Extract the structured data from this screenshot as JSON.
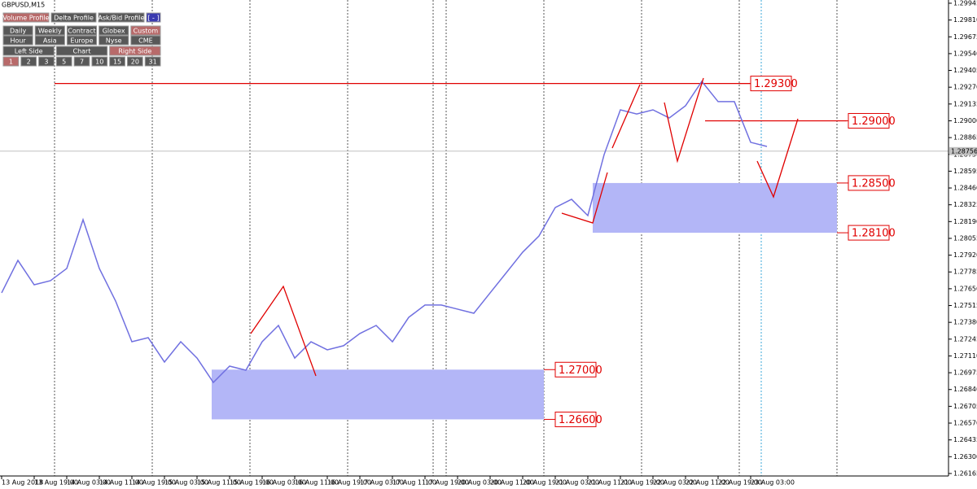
{
  "window_title": "GBPUSD,M15",
  "toolbar": {
    "rows": [
      [
        "Volume Profile",
        "Delta Profile",
        "Ask/Bid Profile",
        "[ - ]"
      ],
      [
        "Daily",
        "Weekly",
        "Contract",
        "Globex",
        "Custom"
      ],
      [
        "Hour",
        "Asia",
        "Europe",
        "Nyse",
        "CME"
      ],
      [
        "Left Side",
        "Chart",
        "Right Side"
      ],
      [
        "1",
        "2",
        "3",
        "5",
        "7",
        "10",
        "15",
        "20",
        "31"
      ]
    ]
  },
  "chart_data": {
    "type": "line",
    "categories": [
      "13 Aug 2018",
      null,
      "13 Aug 19:00",
      null,
      "14 Aug 03:00",
      null,
      "14 Aug 11:00",
      null,
      "14 Aug 19:00",
      null,
      "15 Aug 03:00",
      null,
      "15 Aug 11:00",
      null,
      "15 Aug 19:00",
      null,
      "16 Aug 03:00",
      null,
      "16 Aug 11:00",
      null,
      "16 Aug 19:00",
      null,
      "17 Aug 03:00",
      null,
      "17 Aug 11:00",
      null,
      "17 Aug 19:00",
      null,
      "20 Aug 03:00",
      null,
      "20 Aug 11:00",
      null,
      "20 Aug 19:00",
      null,
      "21 Aug 03:00",
      null,
      "21 Aug 11:00",
      null,
      "21 Aug 19:00",
      null,
      "22 Aug 03:00",
      null,
      "22 Aug 11:00",
      null,
      "22 Aug 19:00",
      null,
      "23 Aug 03:00",
      null
    ],
    "series": [
      {
        "name": "GBPUSD",
        "color": "#7070e0",
        "values": [
          1.27617,
          1.27878,
          1.27682,
          1.27715,
          1.27813,
          1.28205,
          1.27813,
          1.27551,
          1.27224,
          1.27257,
          1.27061,
          1.27224,
          1.27093,
          1.26897,
          1.27028,
          1.26995,
          1.27224,
          1.27355,
          1.27093,
          1.27224,
          1.27159,
          1.27192,
          1.2729,
          1.27355,
          1.27224,
          1.2742,
          1.27519,
          1.27519,
          1.27486,
          1.27453,
          1.27617,
          1.2778,
          1.27944,
          1.28074,
          1.28303,
          1.28369,
          1.28238,
          1.28728,
          1.29088,
          1.29055,
          1.29088,
          1.29023,
          1.29121,
          1.29317,
          1.29154,
          1.29154,
          1.28827,
          1.28794
        ]
      }
    ],
    "ylim": [
      1.26145,
      1.29971
    ],
    "yticks": [
      {
        "value": 1.29945,
        "label": "1.29945"
      },
      {
        "value": 1.2981,
        "label": "1.29810"
      },
      {
        "value": 1.29675,
        "label": "1.29675"
      },
      {
        "value": 1.2954,
        "label": "1.29540"
      },
      {
        "value": 1.29405,
        "label": "1.29405"
      },
      {
        "value": 1.2927,
        "label": "1.29270"
      },
      {
        "value": 1.29135,
        "label": "1.29135"
      },
      {
        "value": 1.29,
        "label": "1.29000"
      },
      {
        "value": 1.28865,
        "label": "1.28865"
      },
      {
        "value": 1.2873,
        "label": "1.28730"
      },
      {
        "value": 1.28595,
        "label": "1.28595"
      },
      {
        "value": 1.2846,
        "label": "1.28460"
      },
      {
        "value": 1.28325,
        "label": "1.28325"
      },
      {
        "value": 1.2819,
        "label": "1.28190"
      },
      {
        "value": 1.28055,
        "label": "1.28055"
      },
      {
        "value": 1.2792,
        "label": "1.27920"
      },
      {
        "value": 1.27785,
        "label": "1.27785"
      },
      {
        "value": 1.2765,
        "label": "1.27650"
      },
      {
        "value": 1.27515,
        "label": "1.27515"
      },
      {
        "value": 1.2738,
        "label": "1.27380"
      },
      {
        "value": 1.27245,
        "label": "1.27245"
      },
      {
        "value": 1.2711,
        "label": "1.27110"
      },
      {
        "value": 1.26975,
        "label": "1.26975"
      },
      {
        "value": 1.2684,
        "label": "1.26840"
      },
      {
        "value": 1.26705,
        "label": "1.26705"
      },
      {
        "value": 1.2657,
        "label": "1.26570"
      },
      {
        "value": 1.26435,
        "label": "1.26435"
      },
      {
        "value": 1.263,
        "label": "1.26300"
      },
      {
        "value": 1.26165,
        "label": "1.26165"
      }
    ],
    "current_price": {
      "value": 1.28756,
      "label": "1.28756"
    },
    "levels": [
      {
        "value": 1.293,
        "label": "1.29300"
      },
      {
        "value": 1.29,
        "label": "1.29000"
      },
      {
        "value": 1.285,
        "label": "1.28500"
      },
      {
        "value": 1.281,
        "label": "1.28100"
      },
      {
        "value": 1.27,
        "label": "1.27000"
      },
      {
        "value": 1.266,
        "label": "1.26600"
      }
    ]
  }
}
